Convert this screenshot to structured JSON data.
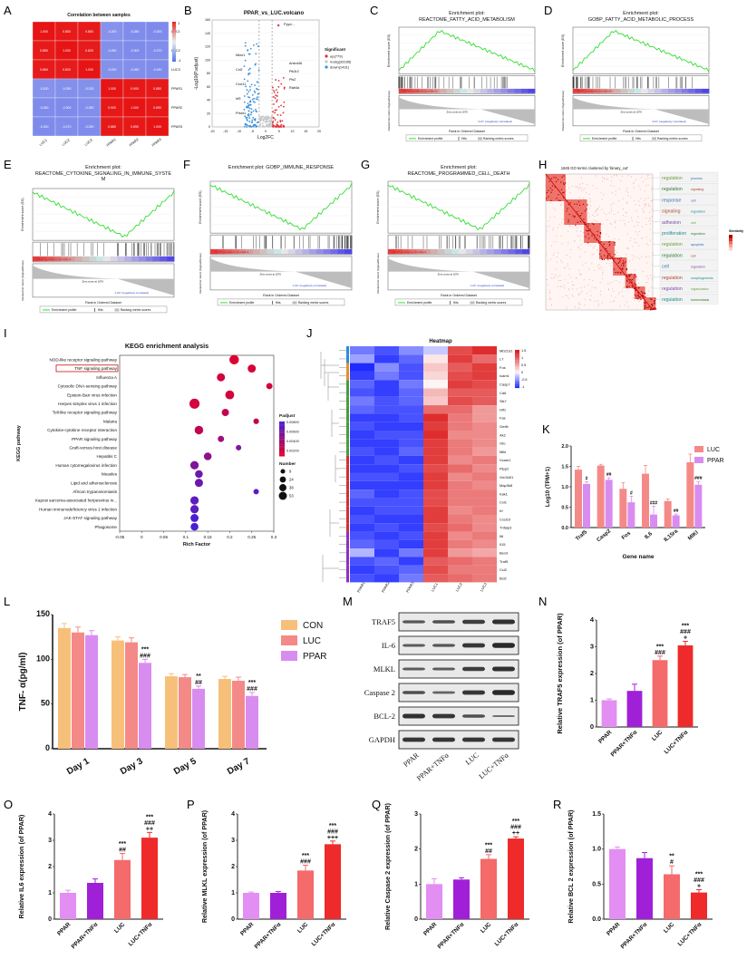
{
  "panel_labels": [
    "A",
    "B",
    "C",
    "D",
    "E",
    "F",
    "G",
    "H",
    "I",
    "J",
    "K",
    "L",
    "M",
    "N",
    "O",
    "P",
    "Q",
    "R"
  ],
  "panelA": {
    "title": "Correlation between samples",
    "rows": [
      "LUC1",
      "LUC2",
      "LUC3",
      "PPAR1",
      "PPAR2",
      "PPAR3"
    ],
    "cols": [
      "LUC1",
      "LUC2",
      "LUC3",
      "PPAR1",
      "PPAR2",
      "PPAR3"
    ],
    "scale_max": "1",
    "scale_min": "-1"
  },
  "panelB": {
    "title": "PPAR_vs_LUC.volcano",
    "xlabel": "Log2FC",
    "ylabel": "-Log10(P.adjust)",
    "legend_title": "Significant",
    "legend": [
      "up(779)",
      "nosig(33185)",
      "down(1431)"
    ],
    "genes_up": [
      "Pyyd...",
      "Ankrd46",
      "Pik3r2",
      "Pls2",
      "Rab4a"
    ],
    "genes_down": [
      "Mksr1",
      "Ccl2",
      "Cxcl11",
      "Irf5",
      "Prkar1"
    ],
    "colors": {
      "up": "#e0303a",
      "nosig": "#c7c7c7",
      "down": "#3a8fd8"
    }
  },
  "gsea": [
    {
      "key": "C",
      "title": "Enrichment plot:",
      "subtitle": "REACTOME_FATTY_ACID_METABOLISM",
      "shape": "peak-left"
    },
    {
      "key": "D",
      "title": "Enrichment plot:",
      "subtitle": "GOBP_FATTY_ACID_METABOLIC_PROCESS",
      "shape": "peak-left"
    },
    {
      "key": "E",
      "title": "Enrichment plot:",
      "subtitle": "REACTOME_CYTOKINE_SIGNALING_IN_IMMUNE_SYSTE M",
      "shape": "valley-right"
    },
    {
      "key": "F",
      "title": "Enrichment plot: GOBP_IMMUNE_RESPONSE",
      "subtitle": "",
      "shape": "valley-right"
    },
    {
      "key": "G",
      "title": "Enrichment plot:",
      "subtitle": "REACTOME_PROGRAMMED_CELL_DEATH",
      "shape": "valley-right"
    }
  ],
  "gsea_common": {
    "es_label": "Enrichment score (ES)",
    "rank_label": "Ranked list metric (Signal2Noise)",
    "x_label": "Rank in Ordered Dataset",
    "pos_label": "'PPAR' (positively correlated)",
    "neg_label": "'LUC' (negatively correlated)",
    "zero_label": "Zero cross at 1076",
    "legend": [
      "Enrichment profile",
      "Hits",
      "Ranking metric scores"
    ]
  },
  "panelH": {
    "title": "1845 GO terms clustered by 'binary_cut'",
    "legend_title": "Similarity",
    "word_clusters": [
      [
        "regulation",
        "process"
      ],
      [
        "regulation",
        "signaling"
      ],
      [
        "response",
        "cell"
      ],
      [
        "signaling",
        "regulation"
      ],
      [
        "adhesion",
        "cell"
      ],
      [
        "proliferation",
        "regulation"
      ],
      [
        "regulation",
        "apoptotic"
      ],
      [
        "regulation",
        "cell"
      ],
      [
        "cell",
        "regulation"
      ],
      [
        "regulation",
        "morphogenesis"
      ],
      [
        "regulation",
        "organization"
      ],
      [
        "regulation",
        "homeostasis"
      ]
    ]
  },
  "chart_data": [
    {
      "panel": "I",
      "type": "scatter",
      "title": "KEGG enrichment analysis",
      "xlabel": "Rich Factor",
      "ylabel": "KEGG pathway",
      "xlim": [
        -0.05,
        0.3
      ],
      "xticks": [
        "-0.05",
        "0",
        "0.05",
        "0.1",
        "0.15",
        "0.2",
        "0.25",
        "0.3"
      ],
      "padj_title": "Padjust",
      "padj_ticks": [
        "0.00800",
        "0.00600",
        "0.00400",
        "0.00200"
      ],
      "size_title": "Number",
      "size_ticks": [
        "9",
        "24",
        "38",
        "53"
      ],
      "highlighted": "TNF signaling pathway",
      "points": [
        {
          "pathway": "NOD-like receptor signaling pathway",
          "x": 0.21,
          "n": 45,
          "padj": 0.0005
        },
        {
          "pathway": "TNF signaling pathway",
          "x": 0.25,
          "n": 30,
          "padj": 0.0008
        },
        {
          "pathway": "Influenza A",
          "x": 0.18,
          "n": 30,
          "padj": 0.001
        },
        {
          "pathway": "Cytosolic DNA-sensing pathway",
          "x": 0.29,
          "n": 14,
          "padj": 0.001
        },
        {
          "pathway": "Epstein-Barr virus infection",
          "x": 0.2,
          "n": 38,
          "padj": 0.001
        },
        {
          "pathway": "Herpes simplex virus 1 infection",
          "x": 0.12,
          "n": 53,
          "padj": 0.001
        },
        {
          "pathway": "Toll-like receptor signaling pathway",
          "x": 0.19,
          "n": 22,
          "padj": 0.002
        },
        {
          "pathway": "Malaria",
          "x": 0.26,
          "n": 10,
          "padj": 0.002
        },
        {
          "pathway": "Cytokine-cytokine receptor interaction",
          "x": 0.13,
          "n": 35,
          "padj": 0.002
        },
        {
          "pathway": "PPAR signaling pathway",
          "x": 0.18,
          "n": 14,
          "padj": 0.004
        },
        {
          "pathway": "Graft-versus-host disease",
          "x": 0.22,
          "n": 9,
          "padj": 0.006
        },
        {
          "pathway": "Hepatitis C",
          "x": 0.15,
          "n": 26,
          "padj": 0.005
        },
        {
          "pathway": "Human cytomegalovirus infection",
          "x": 0.12,
          "n": 33,
          "padj": 0.006
        },
        {
          "pathway": "Measles",
          "x": 0.13,
          "n": 26,
          "padj": 0.007
        },
        {
          "pathway": "Lipid and atherosclerosis",
          "x": 0.13,
          "n": 30,
          "padj": 0.007
        },
        {
          "pathway": "African trypanosomiasis",
          "x": 0.26,
          "n": 9,
          "padj": 0.008
        },
        {
          "pathway": "Kaposi sarcoma-associated herpesvirus in...",
          "x": 0.12,
          "n": 32,
          "padj": 0.008
        },
        {
          "pathway": "Human immunodeficiency virus 1 infection",
          "x": 0.12,
          "n": 32,
          "padj": 0.008
        },
        {
          "pathway": "JAK-STAT signaling pathway",
          "x": 0.12,
          "n": 29,
          "padj": 0.009
        },
        {
          "pathway": "Phagosome",
          "x": 0.12,
          "n": 26,
          "padj": 0.009
        }
      ]
    },
    {
      "panel": "J",
      "type": "heatmap",
      "title": "Heatmap",
      "columns": [
        "PPAR1",
        "PPAR2",
        "PPAR3",
        "LUC1",
        "LUC2",
        "LUC3"
      ],
      "scale_ticks": [
        "1.5",
        "1",
        "0.5",
        "0",
        "-0.5",
        "-1"
      ],
      "genes": [
        "Mb21d1",
        "L7",
        "Fos",
        "Icam1",
        "Casp7",
        "Cd6",
        "Sik7",
        "Hif1",
        "Fas",
        "Gmfb",
        "Ak2",
        "Oto",
        "Mlkl",
        "Vcam1",
        "Plpp2",
        "Gm3401",
        "Map3k8",
        "Irak1",
        "Cxl1",
        "Irf",
        "Cxcl10",
        "Tnfaip3",
        "Il6",
        "Il15",
        "Bex3",
        "Traf5",
        "Ccl2",
        "Bcl2"
      ],
      "values": [
        [
          -0.6,
          -0.8,
          -0.5,
          -0.2,
          1.1,
          1.3
        ],
        [
          -0.4,
          -0.9,
          -0.7,
          0.1,
          1.2,
          0.9
        ],
        [
          -1.0,
          -0.5,
          -0.8,
          0.3,
          1.0,
          1.2
        ],
        [
          -0.9,
          -0.6,
          -0.8,
          0.2,
          1.1,
          1.2
        ],
        [
          -0.7,
          -0.9,
          -0.6,
          0.0,
          1.2,
          1.1
        ],
        [
          -0.8,
          -0.9,
          -0.7,
          0.4,
          1.0,
          1.0
        ],
        [
          -0.6,
          -0.8,
          -0.7,
          0.3,
          1.1,
          1.0
        ],
        [
          -0.7,
          -0.8,
          -0.8,
          0.9,
          0.9,
          0.6
        ],
        [
          -0.9,
          -0.9,
          -0.8,
          1.3,
          0.8,
          0.6
        ],
        [
          -0.8,
          -0.9,
          -0.9,
          1.2,
          0.8,
          0.7
        ],
        [
          -0.9,
          -0.8,
          -0.8,
          1.3,
          0.7,
          0.7
        ],
        [
          -0.9,
          -0.9,
          -0.8,
          1.2,
          0.8,
          0.7
        ],
        [
          -0.8,
          -0.9,
          -0.7,
          1.2,
          0.8,
          0.6
        ],
        [
          -0.9,
          -0.8,
          -0.9,
          1.2,
          0.7,
          0.8
        ],
        [
          -0.9,
          -0.9,
          -0.8,
          1.1,
          0.9,
          0.7
        ],
        [
          -0.8,
          -0.8,
          -0.9,
          1.2,
          0.7,
          0.8
        ],
        [
          -0.9,
          -0.9,
          -0.9,
          1.2,
          0.8,
          0.7
        ],
        [
          -0.7,
          -0.9,
          -0.8,
          1.1,
          0.8,
          0.8
        ],
        [
          -0.8,
          -0.8,
          -0.8,
          1.1,
          0.8,
          0.8
        ],
        [
          -0.9,
          -0.8,
          -0.8,
          1.2,
          0.7,
          0.8
        ],
        [
          -0.8,
          -0.9,
          -0.9,
          1.2,
          0.8,
          0.7
        ],
        [
          -0.9,
          -0.8,
          -0.9,
          1.1,
          0.9,
          0.7
        ],
        [
          -0.8,
          -0.9,
          -0.8,
          1.2,
          0.7,
          0.8
        ],
        [
          -0.7,
          -0.8,
          -0.9,
          1.2,
          0.8,
          0.7
        ],
        [
          -0.3,
          -0.9,
          -0.6,
          1.2,
          0.6,
          0.5
        ],
        [
          -0.8,
          -0.7,
          -0.9,
          1.0,
          0.9,
          0.8
        ],
        [
          -0.9,
          -0.8,
          -0.7,
          1.1,
          0.8,
          0.8
        ],
        [
          -0.8,
          -0.9,
          -0.6,
          1.0,
          0.9,
          0.8
        ]
      ]
    },
    {
      "panel": "K",
      "type": "bar",
      "xlabel": "Gene name",
      "ylabel": "Log10 (TPM+1)",
      "ylim": [
        0,
        2
      ],
      "yticks": [
        "0.0",
        "0.5",
        "1.0",
        "1.5",
        "2.0"
      ],
      "categories": [
        "Traf5",
        "Casp2",
        "Fos",
        "IL6",
        "IL15ra",
        "MlKl"
      ],
      "series": [
        {
          "name": "LUC",
          "values": [
            1.42,
            1.52,
            0.95,
            1.32,
            0.65,
            1.6
          ],
          "errors": [
            0.08,
            0.03,
            0.15,
            0.2,
            0.05,
            0.2
          ]
        },
        {
          "name": "PPAR",
          "values": [
            1.07,
            1.17,
            0.62,
            0.32,
            0.3,
            1.05
          ],
          "errors": [
            0.05,
            0.05,
            0.15,
            0.2,
            0.03,
            0.08
          ]
        }
      ],
      "annotations": [
        "#",
        "##",
        "#",
        "###",
        "##",
        "###"
      ]
    },
    {
      "panel": "L",
      "type": "bar",
      "xlabel": "",
      "ylabel": "TNF- α(pg/ml)",
      "ylim": [
        0,
        150
      ],
      "yticks": [
        "0",
        "50",
        "100",
        "150"
      ],
      "categories": [
        "Day 1",
        "Day 3",
        "Day 5",
        "Day 7"
      ],
      "series": [
        {
          "name": "CON",
          "values": [
            135,
            121,
            81,
            78
          ],
          "errors": [
            5,
            4,
            3,
            3
          ]
        },
        {
          "name": "LUC",
          "values": [
            130,
            119,
            80,
            76
          ],
          "errors": [
            6,
            5,
            3,
            4
          ]
        },
        {
          "name": "PPAR",
          "values": [
            127,
            96,
            67,
            59
          ],
          "errors": [
            5,
            4,
            3,
            4
          ]
        }
      ],
      "annotations": [
        [
          "",
          ""
        ],
        [
          "***",
          "###"
        ],
        [
          "**",
          "##"
        ],
        [
          "***",
          "###"
        ]
      ]
    },
    {
      "panel": "N",
      "type": "bar",
      "ylabel": "Relative TRAF5 expression (of PPAR)",
      "ylim": [
        0,
        4
      ],
      "yticks": [
        "0",
        "1",
        "2",
        "3",
        "4"
      ],
      "categories": [
        "PPAR",
        "PPAR+TNFα",
        "LUC",
        "LUC+TNFα"
      ],
      "values": [
        1.0,
        1.35,
        2.5,
        3.05
      ],
      "errors": [
        0.05,
        0.25,
        0.15,
        0.15
      ],
      "annotations": [
        [],
        [],
        [
          "***",
          "###"
        ],
        [
          "***",
          "###",
          "+"
        ]
      ]
    },
    {
      "panel": "O",
      "type": "bar",
      "ylabel": "Relative IL6 expression (of PPAR)",
      "ylim": [
        0,
        4
      ],
      "yticks": [
        "0",
        "1",
        "2",
        "3",
        "4"
      ],
      "categories": [
        "PPAR",
        "PPAR+TNFα",
        "LUC",
        "LUC+TNFα"
      ],
      "values": [
        1.0,
        1.38,
        2.25,
        3.1
      ],
      "errors": [
        0.1,
        0.15,
        0.25,
        0.2
      ],
      "annotations": [
        [],
        [],
        [
          "***",
          "##"
        ],
        [
          "***",
          "###",
          "++"
        ]
      ]
    },
    {
      "panel": "P",
      "type": "bar",
      "ylabel": "Relative MLKL expression (of PPAR)",
      "ylim": [
        0,
        4
      ],
      "yticks": [
        "0",
        "1",
        "2",
        "3",
        "4"
      ],
      "categories": [
        "PPAR",
        "PPAR+TNFα",
        "LUC",
        "LUC+TNFα"
      ],
      "values": [
        1.0,
        1.0,
        1.85,
        2.85
      ],
      "errors": [
        0.03,
        0.05,
        0.2,
        0.12
      ],
      "annotations": [
        [],
        [],
        [
          "***",
          "###"
        ],
        [
          "***",
          "###",
          "+++"
        ]
      ]
    },
    {
      "panel": "Q",
      "type": "bar",
      "ylabel": "Relative Caspase 2 expression (of PPAR)",
      "ylim": [
        0,
        3
      ],
      "yticks": [
        "0",
        "1",
        "2",
        "3"
      ],
      "categories": [
        "PPAR",
        "PPAR+TNFα",
        "LUC",
        "LUC+TNFα"
      ],
      "values": [
        1.0,
        1.13,
        1.72,
        2.3
      ],
      "errors": [
        0.15,
        0.05,
        0.12,
        0.05
      ],
      "annotations": [
        [],
        [],
        [
          "***",
          "##"
        ],
        [
          "***",
          "###",
          "++"
        ]
      ]
    },
    {
      "panel": "R",
      "type": "bar",
      "ylabel": "Relative BCL 2 expression (of PPAR)",
      "ylim": [
        0,
        1.5
      ],
      "yticks": [
        "0.0",
        "0.5",
        "1.0",
        "1.5"
      ],
      "categories": [
        "PPAR",
        "PPAR+TNFα",
        "LUC",
        "LUC+TNFα"
      ],
      "values": [
        1.0,
        0.87,
        0.64,
        0.38
      ],
      "errors": [
        0.03,
        0.08,
        0.12,
        0.04
      ],
      "annotations": [
        [],
        [],
        [
          "**",
          "#"
        ],
        [
          "***",
          "###",
          "+"
        ]
      ]
    }
  ],
  "panelM": {
    "rows": [
      "TRAF5",
      "IL-6",
      "MLKL",
      "Caspase 2",
      "BCL-2",
      "GAPDH"
    ],
    "lanes": [
      "PPAR",
      "PPAR+TNFα",
      "LUC",
      "LUC+TNFα"
    ]
  },
  "colors": {
    "con": "#f7c07a",
    "luc": "#f48a87",
    "ppar": "#d98cf0",
    "bar_ppar": "#e38ef2",
    "bar_ppar_tnf": "#a020d8",
    "bar_luc": "#f56a6a",
    "bar_luc_tnf": "#ee2a2a",
    "gsea_line": "#33dd33",
    "kegg_high": "#e4002b",
    "kegg_low": "#4b1fd1"
  }
}
